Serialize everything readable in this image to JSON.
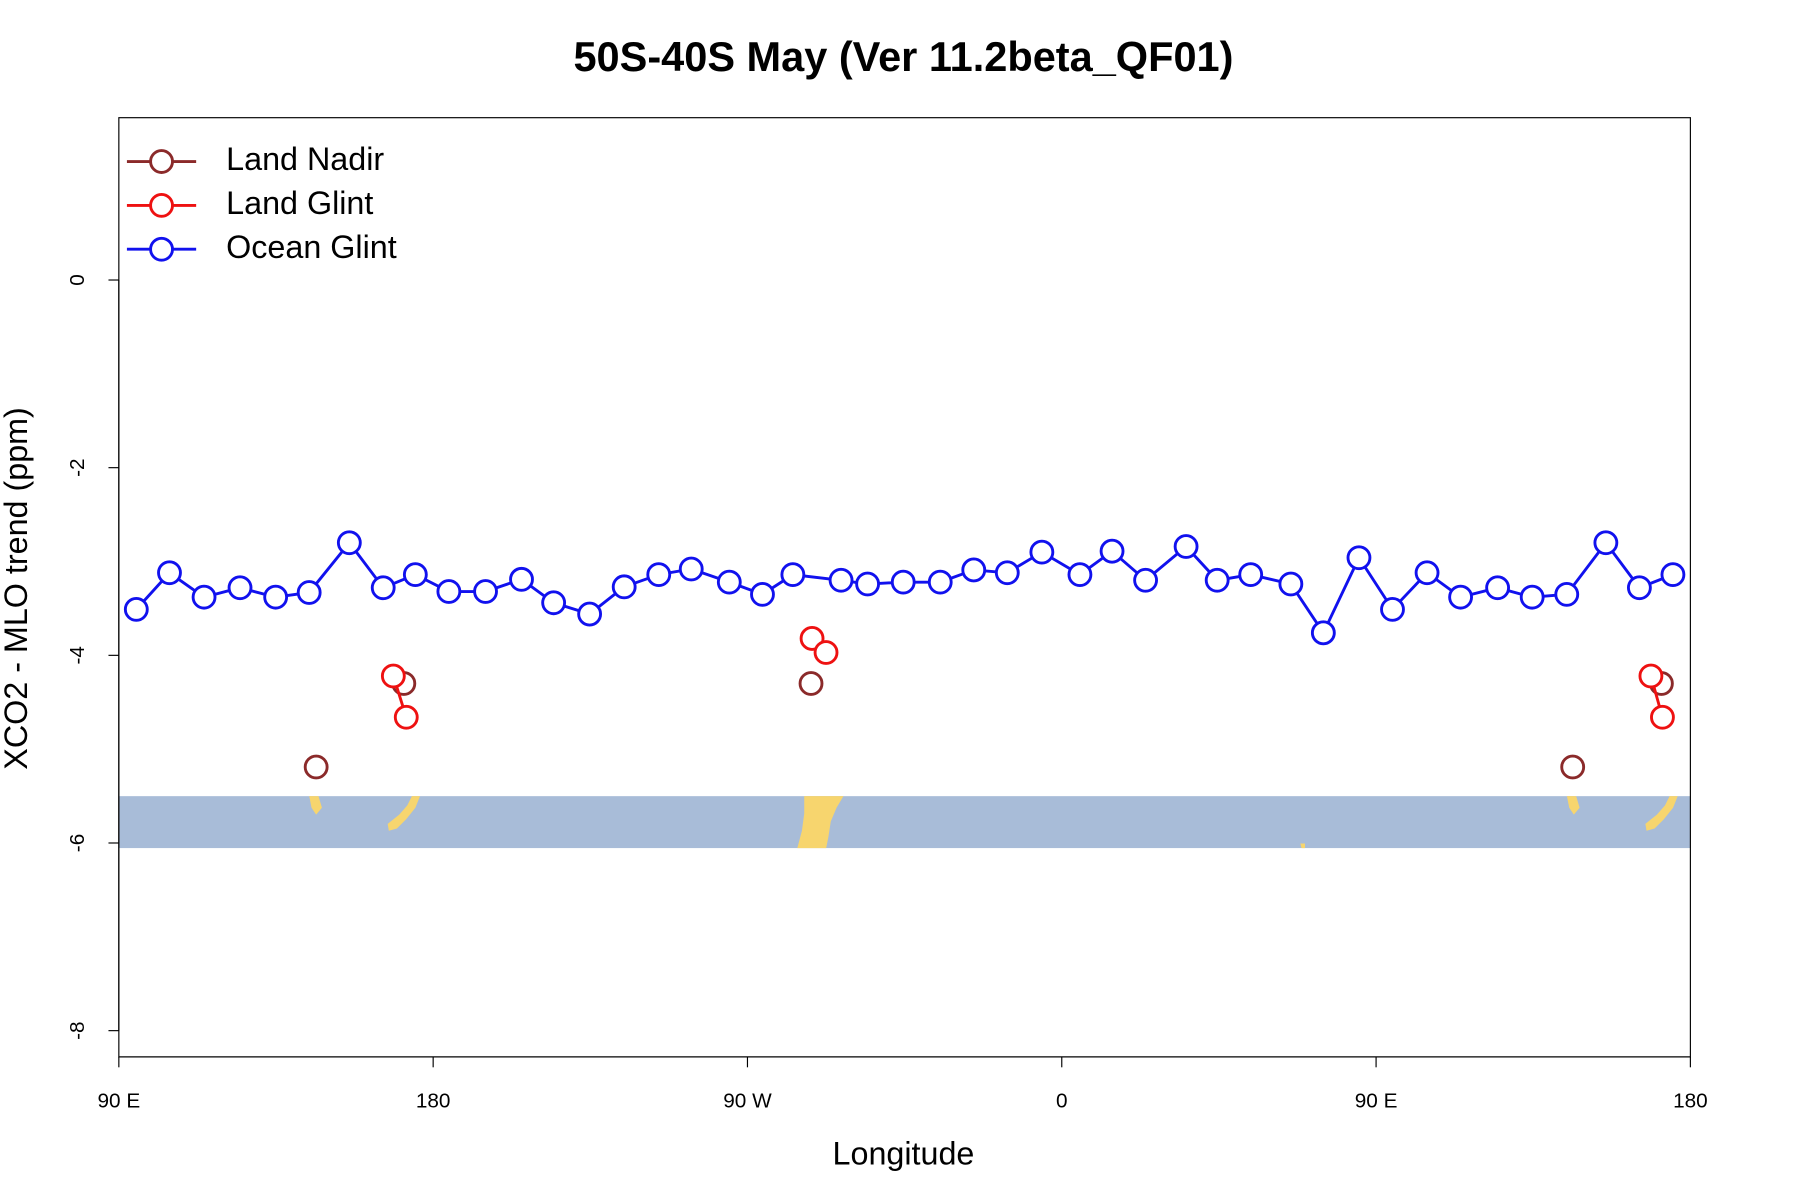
{
  "chart_data": {
    "type": "line",
    "title": "50S-40S May (Ver 11.2beta_QF01)",
    "x_label": "Longitude",
    "y_label": "XCO2 - MLO trend (ppm)",
    "xlim": [
      90,
      540
    ],
    "ylim": [
      -8.28,
      1.73
    ],
    "xticks": [
      {
        "value": 90,
        "label": "90 E"
      },
      180,
      {
        "value": 270,
        "label": "90 W"
      },
      {
        "value": 360,
        "label": "0"
      },
      {
        "value": 450,
        "label": "90 E"
      },
      {
        "value": 540,
        "label": "180"
      }
    ],
    "yticks": [
      0,
      -2,
      -4,
      -6,
      -8
    ],
    "legend": "top-left",
    "series": [
      {
        "name": "Land Nadir",
        "color": "#8b2a2a",
        "x": [
          146.5,
          null,
          171.6,
          null,
          288.2,
          null,
          506.3,
          null,
          531.7
        ],
        "values": [
          -5.19,
          null,
          -4.3,
          null,
          -4.3,
          null,
          -5.19,
          null,
          -4.3
        ]
      },
      {
        "name": "Land Glint",
        "color": "#ee1111",
        "x": [
          168.6,
          172.3,
          null,
          288.5,
          292.5,
          null,
          528.7,
          532.0
        ],
        "values": [
          -4.22,
          -4.66,
          null,
          -3.82,
          -3.97,
          null,
          -4.22,
          -4.66
        ]
      },
      {
        "name": "Ocean Glint",
        "color": "#1111ee",
        "x": [
          95,
          104.5,
          114.4,
          124.7,
          134.9,
          144.5,
          156,
          165.7,
          174.9,
          184.5,
          195,
          205.3,
          214.5,
          224.8,
          234.7,
          244.6,
          253.9,
          264.8,
          274.3,
          283,
          296.8,
          304.4,
          314.6,
          325.2,
          334.8,
          344.4,
          354.3,
          365.2,
          374.4,
          384,
          395.6,
          404.5,
          414.1,
          425.6,
          434.9,
          445.1,
          454.7,
          464.6,
          474.2,
          484.8,
          494.7,
          504.6,
          515.8,
          525.4,
          535
        ],
        "values": [
          -3.51,
          -3.12,
          -3.38,
          -3.28,
          -3.38,
          -3.33,
          -2.8,
          -3.28,
          -3.14,
          -3.32,
          -3.32,
          -3.19,
          -3.44,
          -3.56,
          -3.27,
          -3.14,
          -3.08,
          -3.22,
          -3.35,
          -3.14,
          -3.2,
          -3.24,
          -3.22,
          -3.22,
          -3.09,
          -3.12,
          -2.9,
          -3.14,
          -2.89,
          -3.2,
          -2.84,
          -3.2,
          -3.14,
          -3.24,
          -3.76,
          -2.96,
          -3.51,
          -3.12,
          -3.38,
          -3.28,
          -3.38,
          -3.35,
          -2.8,
          -3.28,
          -3.14
        ]
      }
    ]
  }
}
